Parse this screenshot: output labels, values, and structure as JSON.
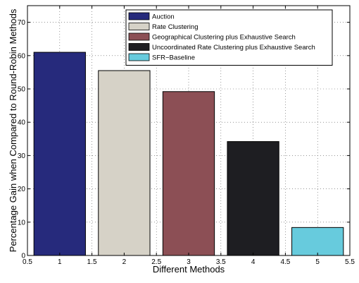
{
  "chart_data": {
    "type": "bar",
    "title": "",
    "xlabel": "Different Methods",
    "ylabel": "Percentage Gain when Compared to Round-Robin Methods",
    "xlim": [
      0.5,
      5.5
    ],
    "ylim": [
      0,
      75
    ],
    "xticks": [
      "0.5",
      "1",
      "1.5",
      "2",
      "2.5",
      "3",
      "3.5",
      "4",
      "4.5",
      "5",
      "5.5"
    ],
    "yticks": [
      "0",
      "10",
      "20",
      "30",
      "40",
      "50",
      "60",
      "70"
    ],
    "grid": true,
    "legend_position": "top-right",
    "series": [
      {
        "name": "Auction",
        "x": 1,
        "value": 61.0,
        "color": "#262a7c"
      },
      {
        "name": "Rate Clustering",
        "x": 2,
        "value": 55.5,
        "color": "#d6d2c7"
      },
      {
        "name": "Geographical Clustering plus Exhaustive Search",
        "x": 3,
        "value": 49.2,
        "color": "#8c4f55"
      },
      {
        "name": "Uncoordinated Rate Clustering plus Exhaustive Search",
        "x": 4,
        "value": 34.2,
        "color": "#1e1e22"
      },
      {
        "name": "SFR−Baseline",
        "x": 5,
        "value": 8.4,
        "color": "#67cbdd"
      }
    ]
  }
}
